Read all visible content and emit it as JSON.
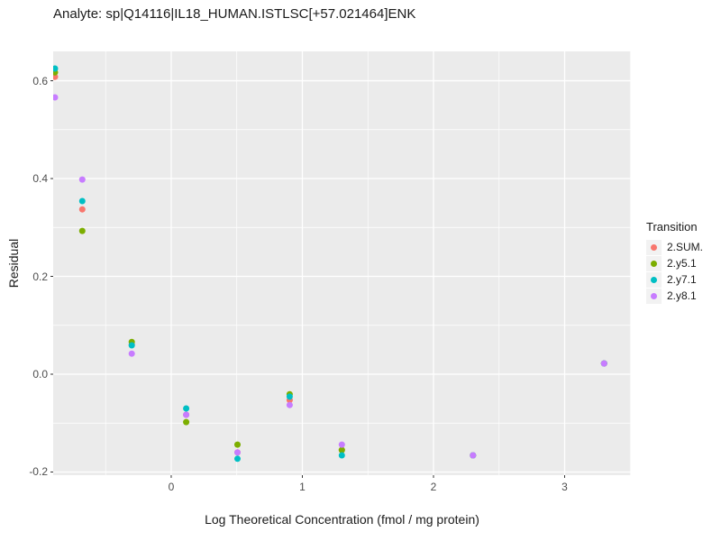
{
  "title": "Analyte: sp|Q14116|IL18_HUMAN.ISTLSC[+57.021464]ENK",
  "axes": {
    "x": {
      "label": "Log Theoretical Concentration (fmol / mg protein)",
      "tick_labels": [
        "0",
        "1",
        "2",
        "3"
      ],
      "tick_values": [
        0,
        1,
        2,
        3
      ]
    },
    "y": {
      "label": "Residual",
      "tick_labels": [
        "0.6",
        "0.4",
        "0.2",
        "0.0",
        "-0.2"
      ],
      "tick_values": [
        0.6,
        0.4,
        0.2,
        0.0,
        -0.2
      ]
    }
  },
  "legend": {
    "title": "Transition",
    "entries": [
      {
        "label": "2.SUM.",
        "color": "#F8766D"
      },
      {
        "label": "2.y5.1",
        "color": "#7CAE00"
      },
      {
        "label": "2.y7.1",
        "color": "#00BFC4"
      },
      {
        "label": "2.y8.1",
        "color": "#C77CFF"
      }
    ]
  },
  "chart_data": {
    "type": "scatter",
    "title": "Analyte: sp|Q14116|IL18_HUMAN.ISTLSC[+57.021464]ENK",
    "xlabel": "Log Theoretical Concentration (fmol / mg protein)",
    "ylabel": "Residual",
    "xlim": [
      -0.9,
      3.505
    ],
    "ylim": [
      -0.2065,
      0.66
    ],
    "x_major_ticks": [
      0,
      1,
      2,
      3
    ],
    "x_minor_ticks": [
      -0.5,
      0.5,
      1.5,
      2.5,
      3.5
    ],
    "y_major_ticks": [
      0.6,
      0.4,
      0.2,
      0.0,
      -0.2
    ],
    "y_minor_ticks": [
      0.5,
      0.3,
      0.1,
      -0.1
    ],
    "grid": true,
    "legend_position": "right",
    "panel_background": "#EBEBEB",
    "grid_color": "#FFFFFF",
    "tick_color": "#333333",
    "point_radius": 3.5,
    "x": [
      -0.886,
      -0.678,
      -0.301,
      0.114,
      0.505,
      0.903,
      1.301,
      2.301,
      3.301
    ],
    "series": [
      {
        "name": "2.SUM.",
        "color": "#F8766D",
        "values": [
          0.608,
          0.337,
          0.06,
          -0.083,
          -0.16,
          -0.053,
          -0.155,
          -0.166,
          0.022
        ]
      },
      {
        "name": "2.y5.1",
        "color": "#7CAE00",
        "values": [
          0.617,
          0.293,
          0.066,
          -0.098,
          -0.144,
          -0.041,
          -0.155,
          -0.166,
          0.022
        ]
      },
      {
        "name": "2.y7.1",
        "color": "#00BFC4",
        "values": [
          0.625,
          0.354,
          0.059,
          -0.07,
          -0.173,
          -0.046,
          -0.166,
          -0.166,
          0.022
        ]
      },
      {
        "name": "2.y8.1",
        "color": "#C77CFF",
        "values": [
          0.566,
          0.398,
          0.042,
          -0.083,
          -0.16,
          -0.063,
          -0.144,
          -0.166,
          0.022
        ]
      }
    ]
  }
}
